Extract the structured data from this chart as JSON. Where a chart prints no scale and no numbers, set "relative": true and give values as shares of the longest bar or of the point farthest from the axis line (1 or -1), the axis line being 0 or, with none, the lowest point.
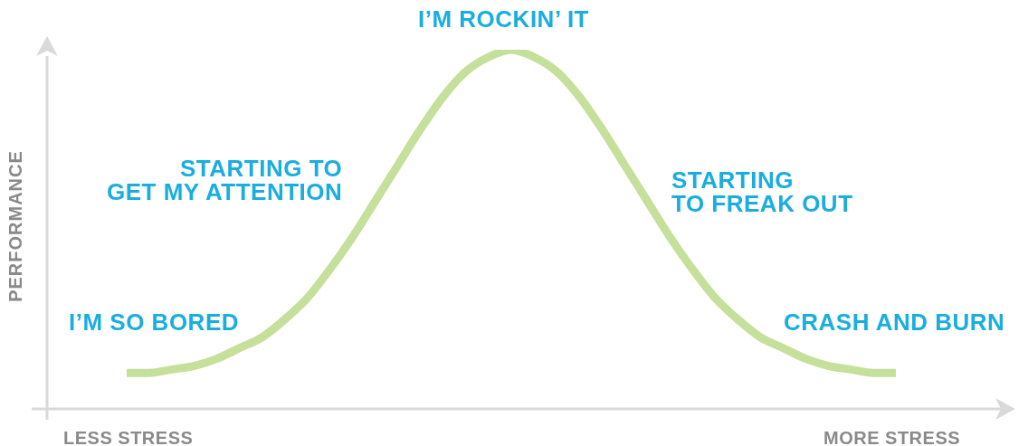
{
  "chart_data": {
    "type": "line",
    "relative": true,
    "ylabel": "PERFORMANCE",
    "categories": [
      null,
      null,
      null,
      null,
      null,
      null,
      null,
      null,
      null,
      null,
      null,
      null,
      null,
      null,
      null,
      null,
      null,
      null,
      null,
      null,
      null,
      null,
      null,
      null,
      null,
      null,
      null,
      null,
      null,
      null,
      null,
      null,
      null,
      null,
      null
    ],
    "series": [
      {
        "color": "#c5e09a",
        "values": [
          0.1,
          0.1,
          0.11,
          0.12,
          0.14,
          0.17,
          0.2,
          0.25,
          0.31,
          0.39,
          0.48,
          0.58,
          0.68,
          0.78,
          0.87,
          0.94,
          0.98,
          1,
          0.98,
          0.94,
          0.87,
          0.78,
          0.68,
          0.58,
          0.48,
          0.39,
          0.31,
          0.25,
          0.2,
          0.17,
          0.14,
          0.12,
          0.11,
          0.1,
          0.1
        ]
      }
    ],
    "annotations": [
      "I’M ROCKIN’ IT",
      "STARTING TO\nGET MY ATTENTION",
      "STARTING\nTO FREAK OUT",
      "I’M SO BORED",
      "CRASH AND BURN",
      "LESS STRESS",
      "MORE STRESS"
    ],
    "marker": "none",
    "line_style": "solid",
    "legend": false
  }
}
